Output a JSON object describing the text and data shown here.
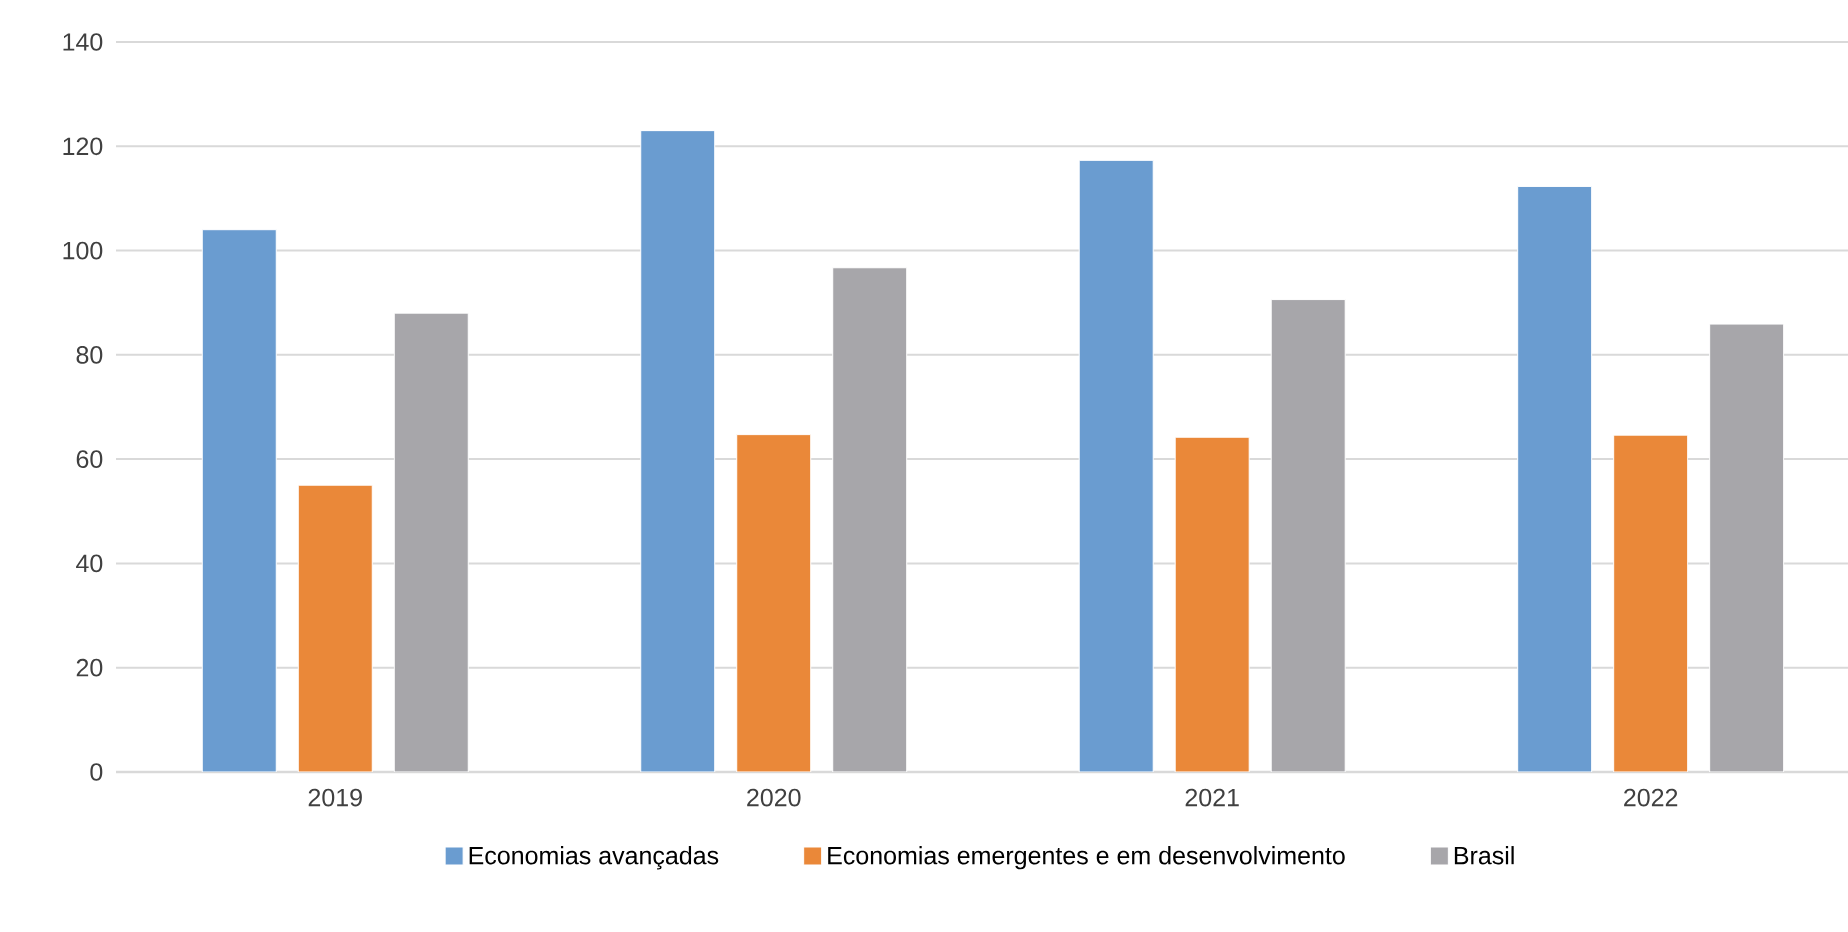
{
  "chart_data": {
    "type": "bar",
    "categories": [
      "2019",
      "2020",
      "2021",
      "2022"
    ],
    "series": [
      {
        "name": "Economias avançadas",
        "color": "#6a9cd0",
        "values": [
          104,
          123,
          117.3,
          112.3
        ]
      },
      {
        "name": "Economias emergentes e em desenvolvimento",
        "color": "#ea8839",
        "values": [
          55,
          64.7,
          64.2,
          64.6
        ]
      },
      {
        "name": "Brasil",
        "color": "#a7a6aa",
        "values": [
          88,
          96.7,
          90.6,
          85.9
        ]
      }
    ],
    "ylim": [
      0,
      140
    ],
    "yticks": [
      0,
      20,
      40,
      60,
      80,
      100,
      120,
      140
    ],
    "grid": "y",
    "legend": "bottom"
  }
}
